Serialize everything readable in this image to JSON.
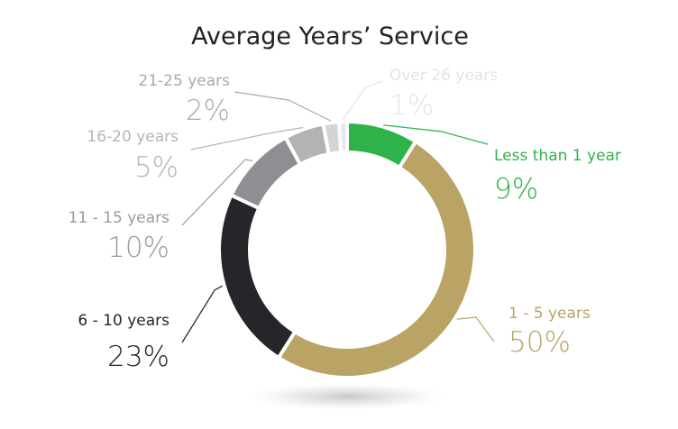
{
  "chart_data": {
    "type": "pie",
    "title": "Average Years’ Service",
    "categories": [
      "Less than 1 year",
      "1 - 5 years",
      "6 - 10 years",
      "11 - 15 years",
      "16-20 years",
      "21-25 years",
      "Over 26 years"
    ],
    "values": [
      9,
      50,
      23,
      10,
      5,
      2,
      1
    ],
    "value_labels": [
      "9%",
      "50%",
      "23%",
      "10%",
      "5%",
      "2%",
      "1%"
    ],
    "colors": [
      "#2db34a",
      "#b9a466",
      "#24262a",
      "#8e8f92",
      "#b2b3b5",
      "#d3d4d5",
      "#e6e7e8"
    ],
    "label_colors": [
      "#2db34a",
      "#b9a466",
      "#24262a",
      "#9a9b9e",
      "#b4b5b7",
      "#a9aaac",
      "#e3e4e5"
    ],
    "style": "donut"
  }
}
